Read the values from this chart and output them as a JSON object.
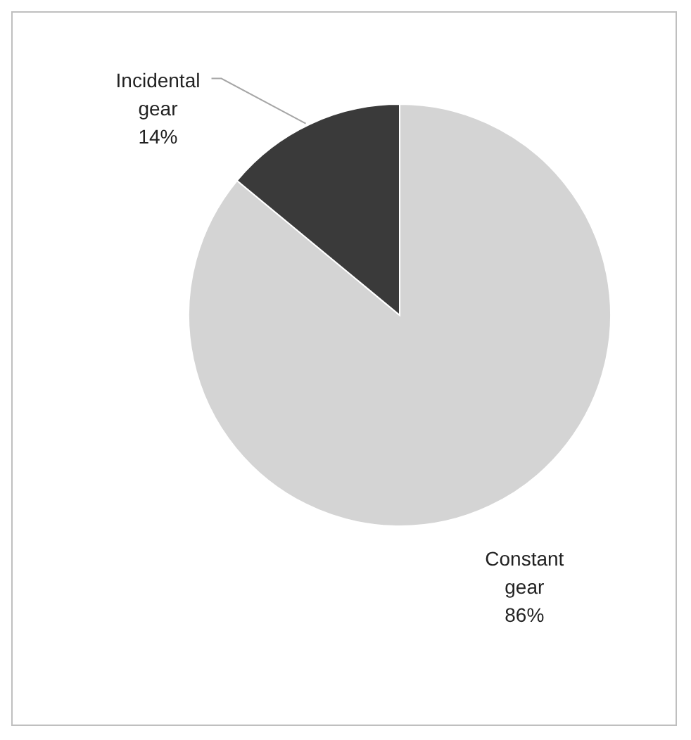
{
  "chart_data": {
    "type": "pie",
    "categories": [
      "Constant gear",
      "Incidental gear"
    ],
    "values": [
      86,
      14
    ],
    "colors": [
      "#d4d4d4",
      "#3a3a3a"
    ],
    "value_labels": [
      "86%",
      "14%"
    ]
  }
}
